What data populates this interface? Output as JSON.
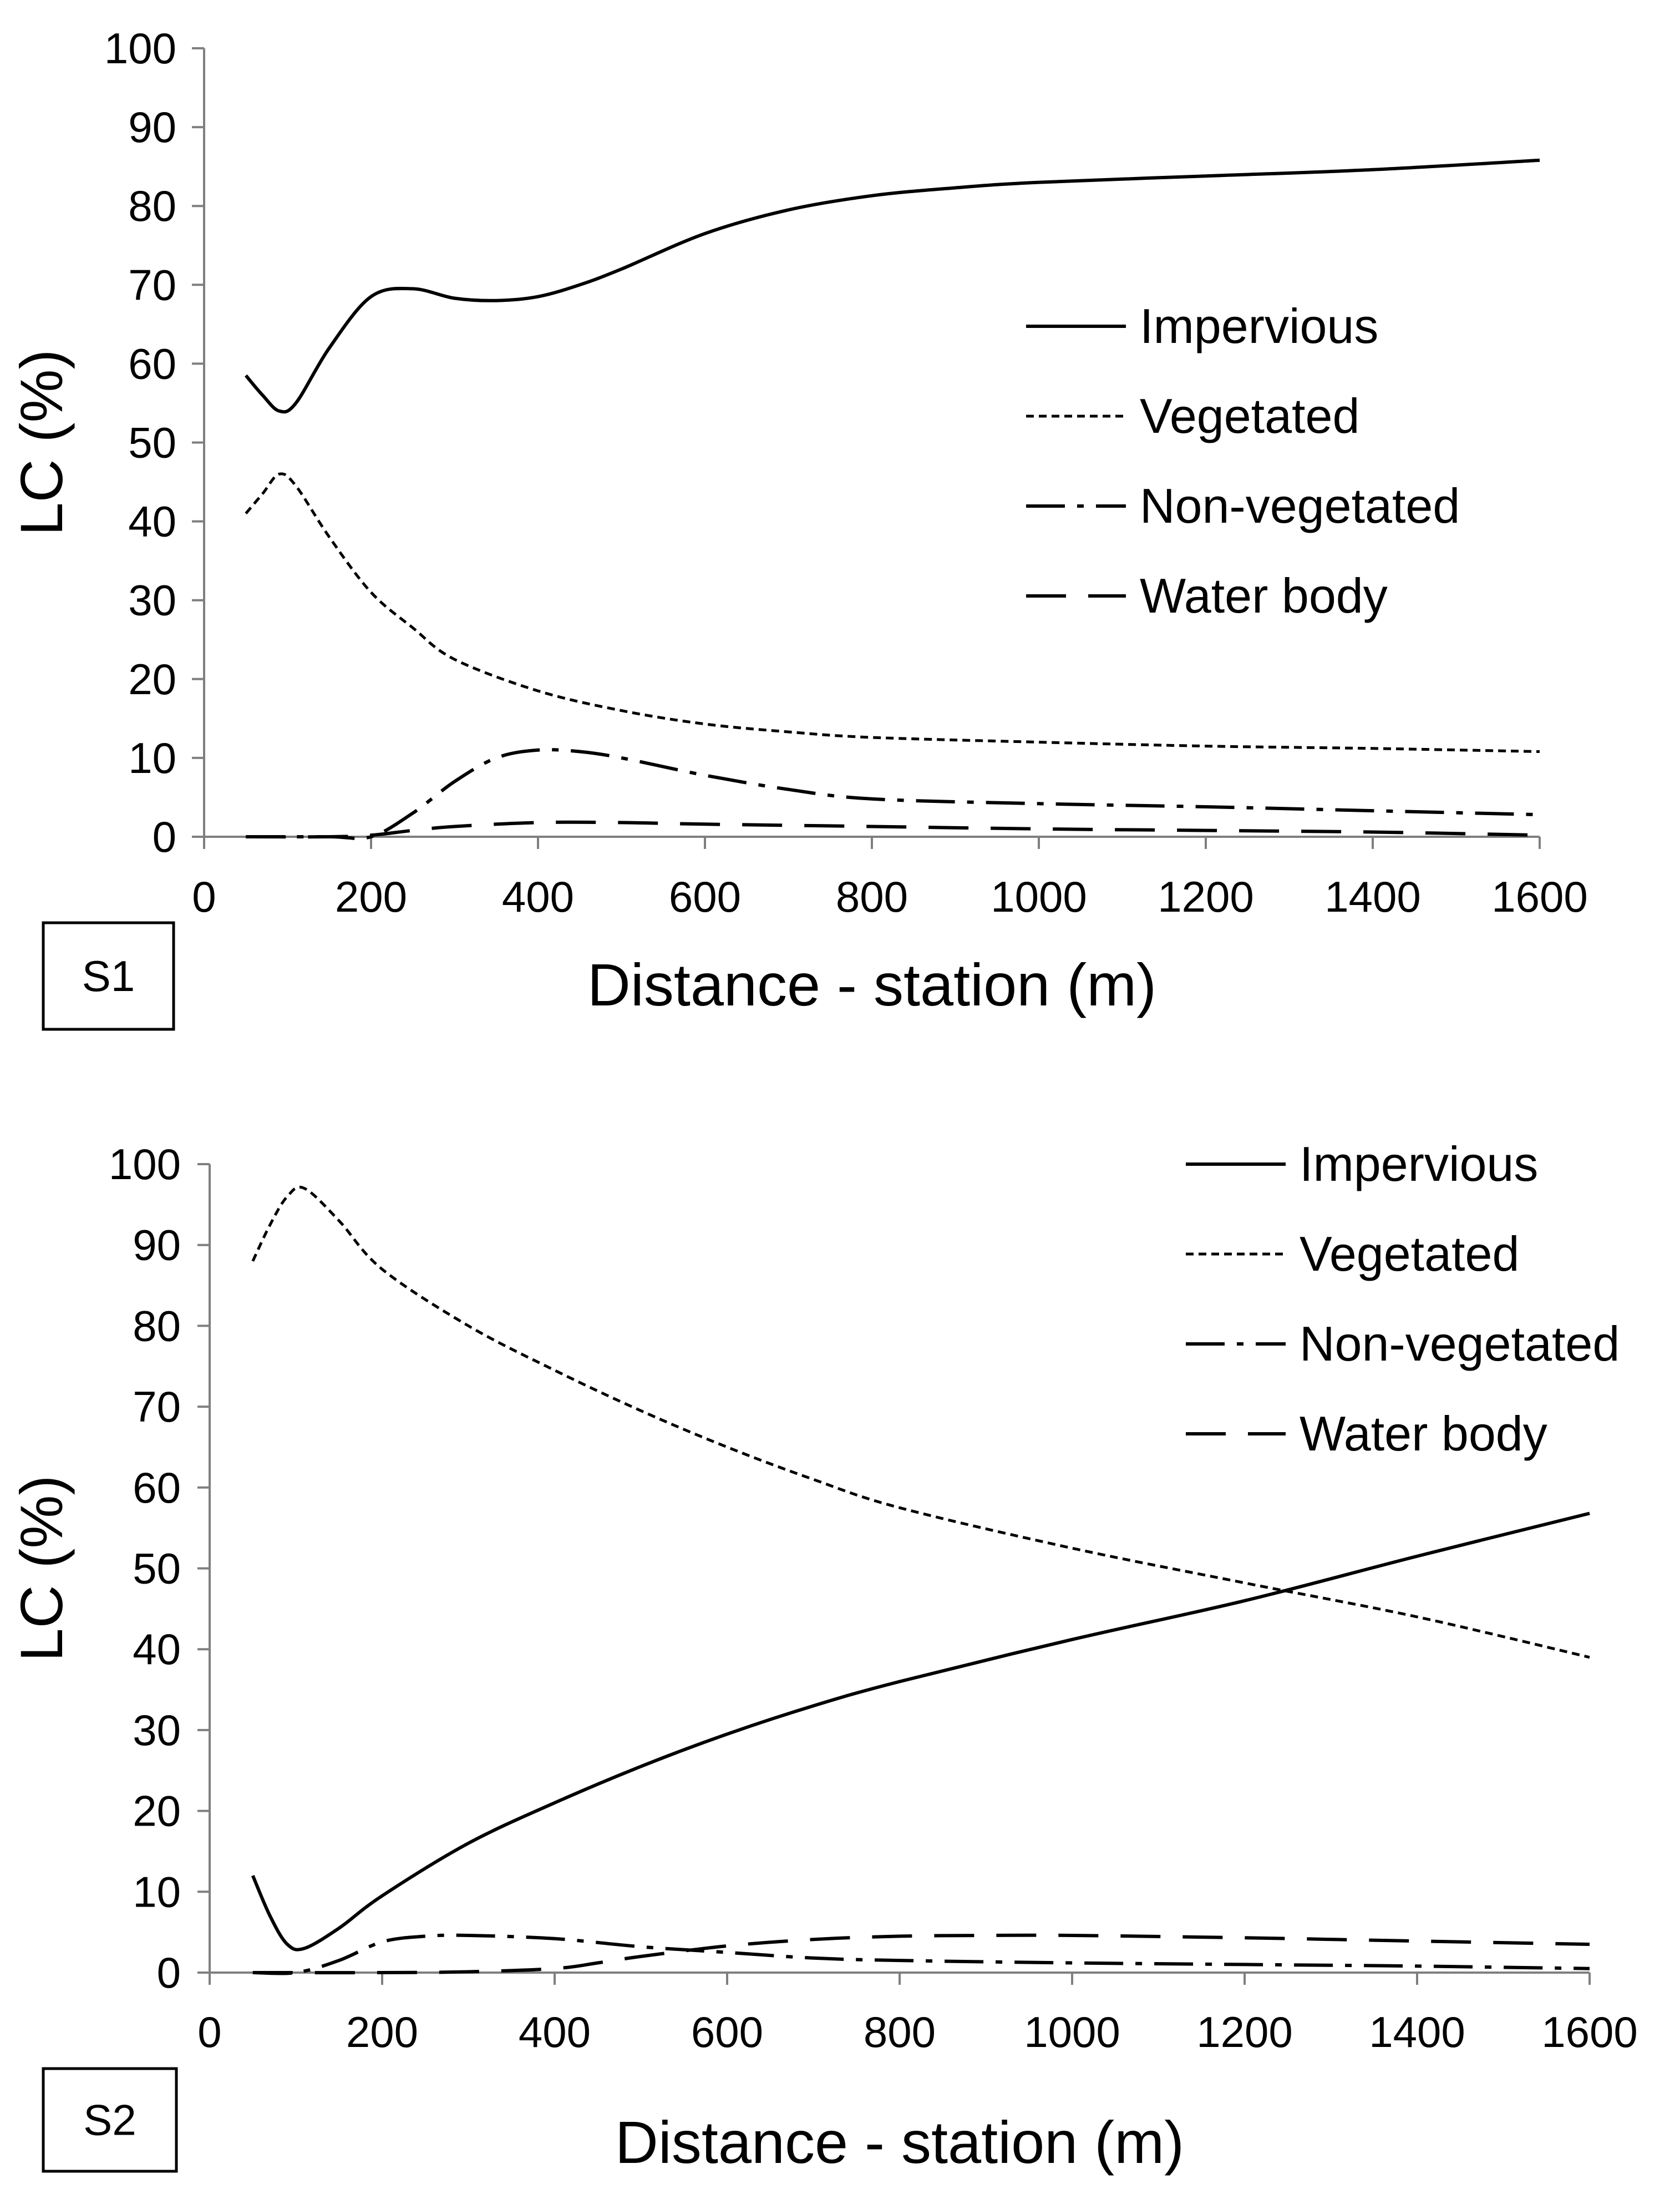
{
  "chart_data": [
    {
      "type": "line",
      "panel_label": "S1",
      "xlabel": "Distance - station (m)",
      "ylabel": "LC (%)",
      "xlim": [
        0,
        1600
      ],
      "ylim": [
        0,
        100
      ],
      "xticks": [
        0,
        200,
        400,
        600,
        800,
        1000,
        1200,
        1400,
        1600
      ],
      "yticks": [
        0,
        10,
        20,
        30,
        40,
        50,
        60,
        70,
        80,
        90,
        100
      ],
      "legend_position": "center-right",
      "series": [
        {
          "name": "Impervious",
          "style": "solid",
          "x": [
            50,
            70,
            90,
            110,
            150,
            200,
            250,
            300,
            350,
            400,
            450,
            500,
            600,
            700,
            800,
            900,
            1000,
            1200,
            1400,
            1600
          ],
          "y": [
            58.5,
            56,
            54,
            55,
            62,
            68.5,
            69.5,
            68.3,
            68,
            68.5,
            70,
            72,
            76.5,
            79.5,
            81.3,
            82.3,
            83,
            83.8,
            84.6,
            85.8
          ]
        },
        {
          "name": "Vegetated",
          "style": "dotted",
          "x": [
            50,
            70,
            90,
            110,
            150,
            200,
            250,
            300,
            400,
            500,
            600,
            700,
            800,
            1000,
            1200,
            1400,
            1600
          ],
          "y": [
            41,
            43.5,
            46,
            44.5,
            38,
            31,
            26.5,
            22.5,
            18.5,
            16,
            14.3,
            13.3,
            12.6,
            12,
            11.5,
            11.2,
            10.8
          ]
        },
        {
          "name": "Non-vegetated",
          "style": "dash-dot",
          "x": [
            50,
            150,
            200,
            250,
            300,
            350,
            400,
            450,
            500,
            600,
            700,
            800,
            1000,
            1200,
            1400,
            1600
          ],
          "y": [
            0,
            0,
            0,
            3,
            7,
            10,
            11,
            10.8,
            10,
            7.8,
            6,
            4.8,
            4.2,
            3.8,
            3.3,
            2.8
          ]
        },
        {
          "name": "Water body",
          "style": "dashed",
          "x": [
            50,
            150,
            200,
            250,
            300,
            400,
            500,
            600,
            800,
            1000,
            1200,
            1400,
            1600
          ],
          "y": [
            0,
            0,
            0.2,
            0.8,
            1.3,
            1.8,
            1.8,
            1.6,
            1.3,
            1,
            0.8,
            0.6,
            0.2
          ]
        }
      ]
    },
    {
      "type": "line",
      "panel_label": "S2",
      "xlabel": "Distance - station (m)",
      "ylabel": "LC (%)",
      "xlim": [
        0,
        1600
      ],
      "ylim": [
        0,
        100
      ],
      "xticks": [
        0,
        200,
        400,
        600,
        800,
        1000,
        1200,
        1400,
        1600
      ],
      "yticks": [
        0,
        10,
        20,
        30,
        40,
        50,
        60,
        70,
        80,
        90,
        100
      ],
      "legend_position": "top-right",
      "series": [
        {
          "name": "Impervious",
          "style": "solid",
          "x": [
            50,
            70,
            90,
            110,
            150,
            200,
            300,
            400,
            500,
            600,
            700,
            800,
            1000,
            1200,
            1400,
            1600
          ],
          "y": [
            12,
            7,
            3.5,
            3,
            5.5,
            9.5,
            16,
            21,
            25.5,
            29.5,
            33,
            36,
            41.2,
            46,
            51.5,
            56.8
          ]
        },
        {
          "name": "Vegetated",
          "style": "dotted",
          "x": [
            50,
            70,
            90,
            110,
            150,
            200,
            300,
            400,
            500,
            600,
            700,
            800,
            1000,
            1200,
            1400,
            1600
          ],
          "y": [
            88,
            92.5,
            96,
            97,
            93,
            87,
            80,
            74.5,
            69.5,
            65,
            61,
            57.5,
            52.5,
            48.2,
            44,
            39
          ]
        },
        {
          "name": "Non-vegetated",
          "style": "dash-dot",
          "x": [
            50,
            100,
            150,
            200,
            250,
            300,
            400,
            500,
            600,
            700,
            800,
            1000,
            1200,
            1400,
            1600
          ],
          "y": [
            0,
            0,
            1.5,
            3.8,
            4.5,
            4.6,
            4.2,
            3.2,
            2.5,
            1.8,
            1.5,
            1.2,
            1,
            0.8,
            0.5
          ]
        },
        {
          "name": "Water body",
          "style": "dashed",
          "x": [
            50,
            200,
            300,
            400,
            450,
            500,
            600,
            700,
            800,
            900,
            1000,
            1200,
            1400,
            1600
          ],
          "y": [
            0,
            0,
            0.1,
            0.5,
            1.2,
            2,
            3.3,
            4.1,
            4.5,
            4.6,
            4.6,
            4.3,
            3.9,
            3.5
          ]
        }
      ]
    }
  ]
}
